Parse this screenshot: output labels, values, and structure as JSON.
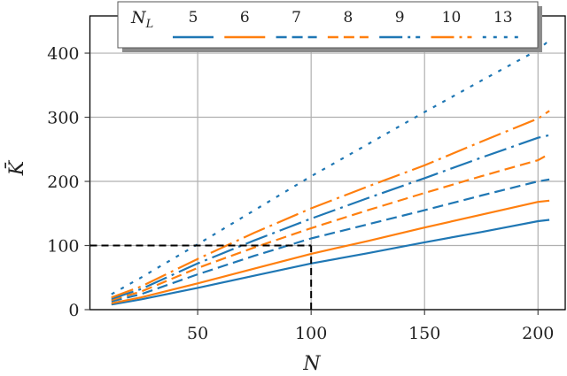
{
  "chart_data": {
    "type": "line",
    "title": "",
    "xlabel": "N",
    "ylabel": "K̄",
    "xlim": [
      2.5,
      212
    ],
    "ylim": [
      0,
      458
    ],
    "xticks": [
      50,
      100,
      150,
      200
    ],
    "yticks": [
      0,
      100,
      200,
      300,
      400
    ],
    "grid": true,
    "legend": {
      "title": "N_L",
      "position": "top, horizontal, with drop shadow",
      "entries": [
        "5",
        "6",
        "7",
        "8",
        "9",
        "10",
        "13"
      ]
    },
    "x": [
      12,
      25,
      50,
      75,
      100,
      125,
      150,
      175,
      200,
      205
    ],
    "series": [
      {
        "name": "5",
        "color": "#1f77b4",
        "style": "solid",
        "values": [
          8,
          16,
          34,
          53,
          72,
          88,
          105,
          121,
          138,
          140
        ]
      },
      {
        "name": "6",
        "color": "#ff7f0e",
        "style": "solid",
        "values": [
          10,
          19,
          41,
          64,
          87,
          107,
          128,
          148,
          168,
          170
        ]
      },
      {
        "name": "7",
        "color": "#1f77b4",
        "style": "dashed",
        "values": [
          13,
          24,
          55,
          84,
          111,
          133,
          155,
          178,
          200,
          203
        ]
      },
      {
        "name": "8",
        "color": "#ff7f0e",
        "style": "dashed",
        "values": [
          15,
          28,
          65,
          97,
          127,
          155,
          182,
          208,
          233,
          243
        ]
      },
      {
        "name": "9",
        "color": "#1f77b4",
        "style": "dashdot",
        "values": [
          17,
          32,
          72,
          108,
          142,
          174,
          205,
          237,
          268,
          272
        ]
      },
      {
        "name": "10",
        "color": "#ff7f0e",
        "style": "dashdot",
        "values": [
          19,
          36,
          79,
          120,
          158,
          192,
          225,
          262,
          298,
          310
        ]
      },
      {
        "name": "13",
        "color": "#1f77b4",
        "style": "dotted",
        "values": [
          24,
          50,
          102,
          155,
          208,
          258,
          308,
          357,
          405,
          420
        ]
      }
    ],
    "annotations": [
      {
        "type": "reference-line",
        "style": "dashed",
        "color": "#000000",
        "from": [
          2.5,
          100
        ],
        "to": [
          100,
          100
        ]
      },
      {
        "type": "reference-line",
        "style": "dashed",
        "color": "#000000",
        "from": [
          100,
          0
        ],
        "to": [
          100,
          100
        ]
      }
    ]
  },
  "colors": {
    "blue": "#1f77b4",
    "orange": "#ff7f0e",
    "grid": "#b0b0b0",
    "axis": "#000000"
  }
}
